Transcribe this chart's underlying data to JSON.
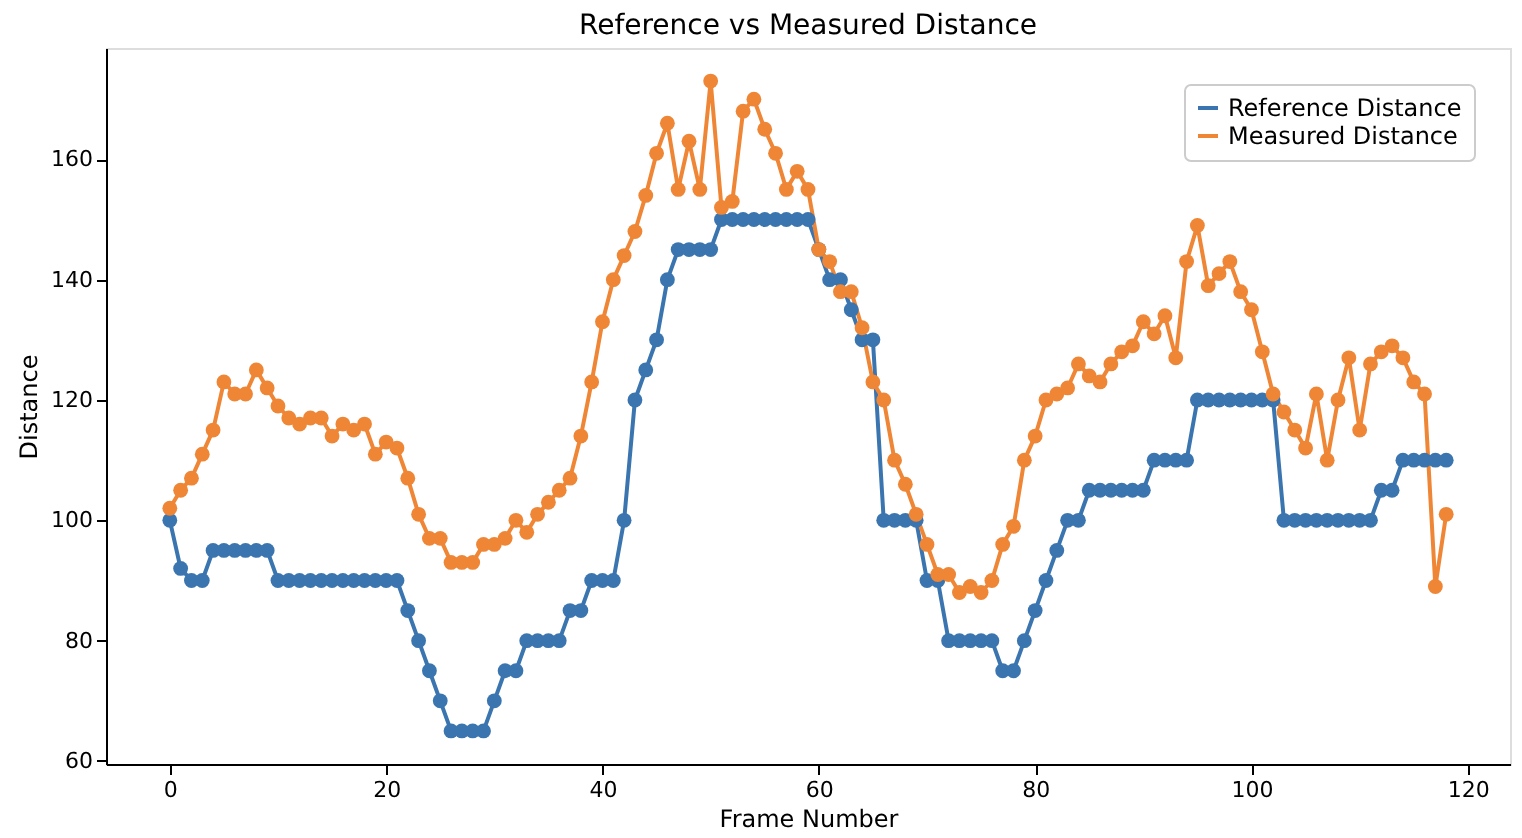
{
  "chart_data": {
    "type": "line",
    "title": "Reference vs Measured Distance",
    "xlabel": "Frame Number",
    "ylabel": "Distance",
    "x": [
      0,
      1,
      2,
      3,
      4,
      5,
      6,
      7,
      8,
      9,
      10,
      11,
      12,
      13,
      14,
      15,
      16,
      17,
      18,
      19,
      20,
      21,
      22,
      23,
      24,
      25,
      26,
      27,
      28,
      29,
      30,
      31,
      32,
      33,
      34,
      35,
      36,
      37,
      38,
      39,
      40,
      41,
      42,
      43,
      44,
      45,
      46,
      47,
      48,
      49,
      50,
      51,
      52,
      53,
      54,
      55,
      56,
      57,
      58,
      59,
      60,
      61,
      62,
      63,
      64,
      65,
      66,
      67,
      68,
      69,
      70,
      71,
      72,
      73,
      74,
      75,
      76,
      77,
      78,
      79,
      80,
      81,
      82,
      83,
      84,
      85,
      86,
      87,
      88,
      89,
      90,
      91,
      92,
      93,
      94,
      95,
      96,
      97,
      98,
      99,
      100,
      101,
      102,
      103,
      104,
      105,
      106,
      107,
      108,
      109,
      110,
      111,
      112,
      113,
      114,
      115,
      116,
      117,
      118
    ],
    "series": [
      {
        "name": "Reference Distance",
        "color": "#3b75af",
        "values": [
          100,
          92,
          90,
          90,
          95,
          95,
          95,
          95,
          95,
          95,
          90,
          90,
          90,
          90,
          90,
          90,
          90,
          90,
          90,
          90,
          90,
          90,
          85,
          80,
          75,
          70,
          65,
          65,
          65,
          65,
          70,
          75,
          75,
          80,
          80,
          80,
          80,
          85,
          85,
          90,
          90,
          90,
          100,
          120,
          125,
          130,
          140,
          145,
          145,
          145,
          145,
          150,
          150,
          150,
          150,
          150,
          150,
          150,
          150,
          150,
          145,
          140,
          140,
          135,
          130,
          130,
          100,
          100,
          100,
          100,
          90,
          90,
          80,
          80,
          80,
          80,
          80,
          75,
          75,
          80,
          85,
          90,
          95,
          100,
          100,
          105,
          105,
          105,
          105,
          105,
          105,
          110,
          110,
          110,
          110,
          120,
          120,
          120,
          120,
          120,
          120,
          120,
          120,
          100,
          100,
          100,
          100,
          100,
          100,
          100,
          100,
          100,
          105,
          105,
          110,
          110,
          110,
          110,
          110
        ]
      },
      {
        "name": "Measured Distance",
        "color": "#ef8636",
        "values": [
          102,
          105,
          107,
          111,
          115,
          123,
          121,
          121,
          125,
          122,
          119,
          117,
          116,
          117,
          117,
          114,
          116,
          115,
          116,
          111,
          113,
          112,
          107,
          101,
          97,
          97,
          93,
          93,
          93,
          96,
          96,
          97,
          100,
          98,
          101,
          103,
          105,
          107,
          114,
          123,
          133,
          140,
          144,
          148,
          154,
          161,
          166,
          155,
          163,
          155,
          173,
          152,
          153,
          168,
          170,
          165,
          161,
          155,
          158,
          155,
          145,
          143,
          138,
          138,
          132,
          123,
          120,
          110,
          106,
          101,
          96,
          91,
          91,
          88,
          89,
          88,
          90,
          96,
          99,
          110,
          114,
          120,
          121,
          122,
          126,
          124,
          123,
          126,
          128,
          129,
          133,
          131,
          134,
          127,
          143,
          149,
          139,
          141,
          143,
          138,
          135,
          128,
          121,
          118,
          115,
          112,
          121,
          110,
          120,
          127,
          115,
          126,
          128,
          129,
          127,
          123,
          121,
          89,
          101
        ]
      }
    ],
    "xlim": [
      -5.9,
      123.9
    ],
    "xticks": [
      0,
      20,
      40,
      60,
      80,
      100,
      120
    ],
    "ylim": [
      59.5,
      178.5
    ],
    "yticks": [
      60,
      80,
      100,
      120,
      140,
      160
    ],
    "grid": false,
    "legend": "top right",
    "marker": "circle",
    "line_style": "solid"
  }
}
